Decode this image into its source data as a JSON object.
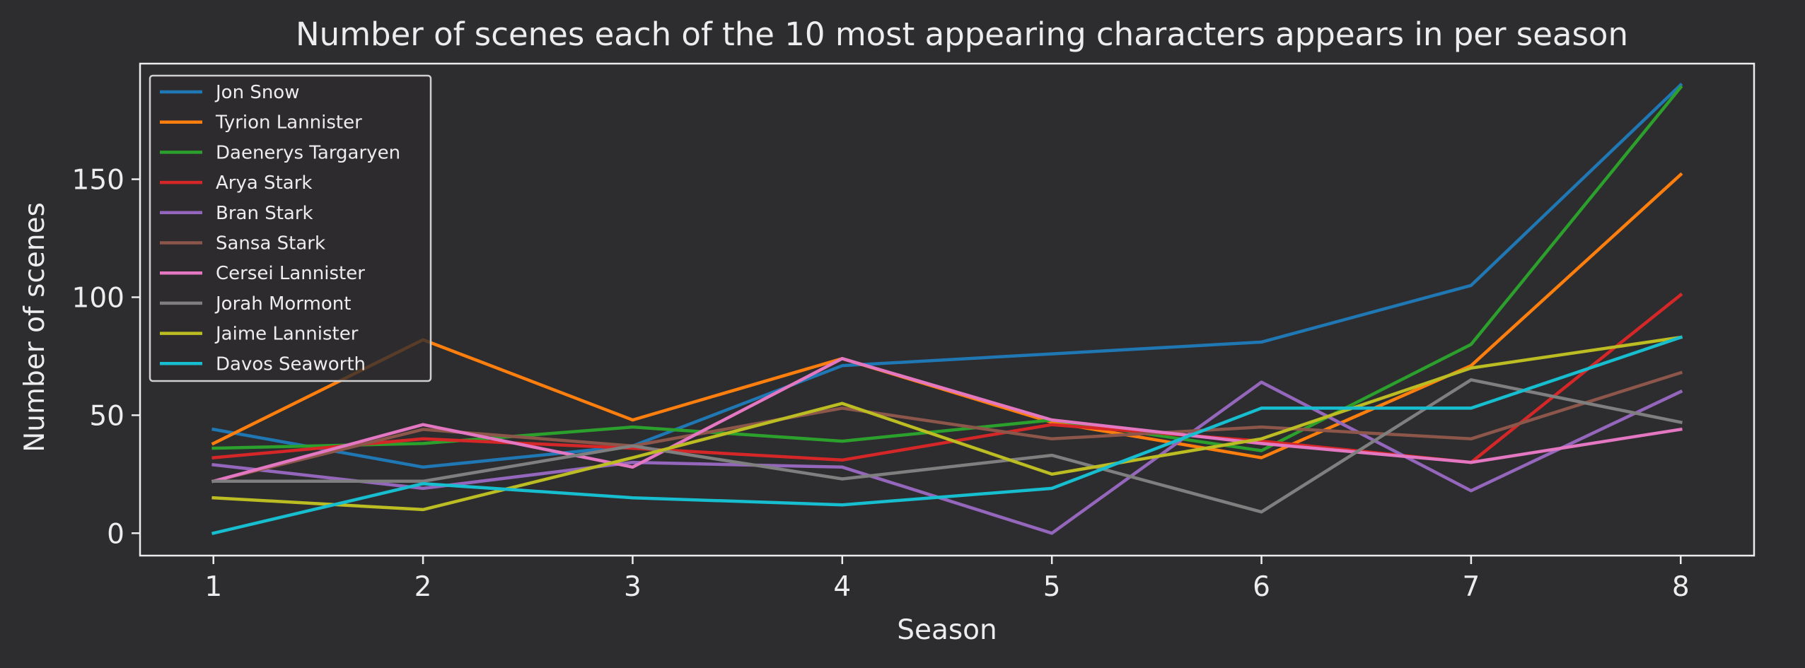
{
  "chart_data": {
    "type": "line",
    "title": "Number of scenes each of the 10 most appearing characters appears in per season",
    "xlabel": "Season",
    "ylabel": "Number of scenes",
    "x": [
      1,
      2,
      3,
      4,
      5,
      6,
      7,
      8
    ],
    "xlim": [
      0.65,
      8.35
    ],
    "ylim": [
      -9.5,
      199
    ],
    "yticks": [
      0,
      50,
      100,
      150
    ],
    "grid": false,
    "legend_position": "top-left",
    "background": "#2d2c2e",
    "foreground": "#ededed",
    "series": [
      {
        "name": "Jon Snow",
        "color": "#1f77b4",
        "values": [
          44,
          28,
          37,
          71,
          76,
          81,
          105,
          190
        ]
      },
      {
        "name": "Tyrion Lannister",
        "color": "#ff7f0e",
        "values": [
          38,
          82,
          48,
          74,
          47,
          32,
          71,
          152
        ]
      },
      {
        "name": "Daenerys Targaryen",
        "color": "#2ca02c",
        "values": [
          36,
          38,
          45,
          39,
          48,
          35,
          80,
          189
        ]
      },
      {
        "name": "Arya Stark",
        "color": "#d62728",
        "values": [
          32,
          40,
          36,
          31,
          46,
          39,
          30,
          101
        ]
      },
      {
        "name": "Bran Stark",
        "color": "#9467bd",
        "values": [
          29,
          19,
          30,
          28,
          0,
          64,
          18,
          60
        ]
      },
      {
        "name": "Sansa Stark",
        "color": "#8c564b",
        "values": [
          22,
          44,
          37,
          53,
          40,
          45,
          40,
          68
        ]
      },
      {
        "name": "Cersei Lannister",
        "color": "#e377c2",
        "values": [
          22,
          46,
          28,
          74,
          48,
          38,
          30,
          44
        ]
      },
      {
        "name": "Jorah Mormont",
        "color": "#7f7f7f",
        "values": [
          22,
          22,
          37,
          23,
          33,
          9,
          65,
          47
        ]
      },
      {
        "name": "Jaime Lannister",
        "color": "#bcbd22",
        "values": [
          15,
          10,
          32,
          55,
          25,
          40,
          70,
          83
        ]
      },
      {
        "name": "Davos Seaworth",
        "color": "#17becf",
        "values": [
          0,
          21,
          15,
          12,
          19,
          53,
          53,
          83
        ]
      }
    ]
  }
}
